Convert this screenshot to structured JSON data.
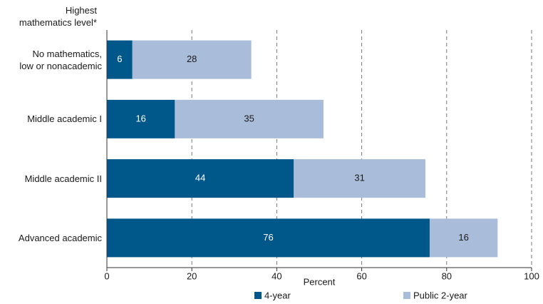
{
  "chart_data": {
    "type": "stacked_barh",
    "y_axis_label": "Highest\nmathematics level*",
    "x_axis_label": "Percent",
    "categories": [
      "No mathematics,\nlow or nonacademic",
      "Middle academic I",
      "Middle academic II",
      "Advanced academic"
    ],
    "series": [
      {
        "name": "4-year",
        "color": "#00578a",
        "values": [
          6,
          16,
          44,
          76
        ]
      },
      {
        "name": "Public 2-year",
        "color": "#a9bcd9",
        "values": [
          28,
          35,
          31,
          16
        ]
      }
    ],
    "xlim": [
      0,
      100
    ],
    "xticks": [
      0,
      20,
      40,
      60,
      80,
      100
    ],
    "grid": true,
    "legend": "bottom"
  }
}
